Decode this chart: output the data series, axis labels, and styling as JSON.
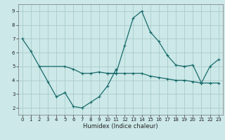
{
  "title": "",
  "xlabel": "Humidex (Indice chaleur)",
  "background_color": "#cce8e8",
  "grid_color": "#aacccc",
  "line_color": "#1a6b6b",
  "line1_x": [
    0,
    1,
    3,
    4,
    5,
    6,
    7,
    8,
    9,
    10,
    11
  ],
  "line1_y": [
    7.0,
    6.1,
    3.9,
    2.8,
    3.1,
    2.1,
    2.0,
    2.4,
    2.8,
    3.6,
    4.8
  ],
  "line2_x": [
    2,
    5,
    6,
    7,
    8,
    9,
    10,
    11,
    12,
    13,
    14,
    15,
    16,
    17,
    18,
    19,
    20,
    21,
    22,
    23
  ],
  "line2_y": [
    5.0,
    5.0,
    4.8,
    4.5,
    4.5,
    4.6,
    4.5,
    4.5,
    6.5,
    8.5,
    9.0,
    7.5,
    6.8,
    5.8,
    5.1,
    5.0,
    5.1,
    3.8,
    3.8,
    3.8
  ],
  "line3_x": [
    10,
    11,
    12,
    13,
    14,
    15,
    16,
    17,
    18,
    19,
    20,
    21,
    22,
    23
  ],
  "line3_y": [
    4.5,
    4.5,
    4.5,
    4.5,
    4.5,
    4.3,
    4.2,
    4.1,
    4.0,
    4.0,
    3.9,
    3.8,
    5.0,
    5.5
  ],
  "xlim": [
    -0.5,
    23.5
  ],
  "ylim": [
    1.5,
    9.5
  ],
  "yticks": [
    2,
    3,
    4,
    5,
    6,
    7,
    8,
    9
  ],
  "xticks": [
    0,
    1,
    2,
    3,
    4,
    5,
    6,
    7,
    8,
    9,
    10,
    11,
    12,
    13,
    14,
    15,
    16,
    17,
    18,
    19,
    20,
    21,
    22,
    23
  ]
}
